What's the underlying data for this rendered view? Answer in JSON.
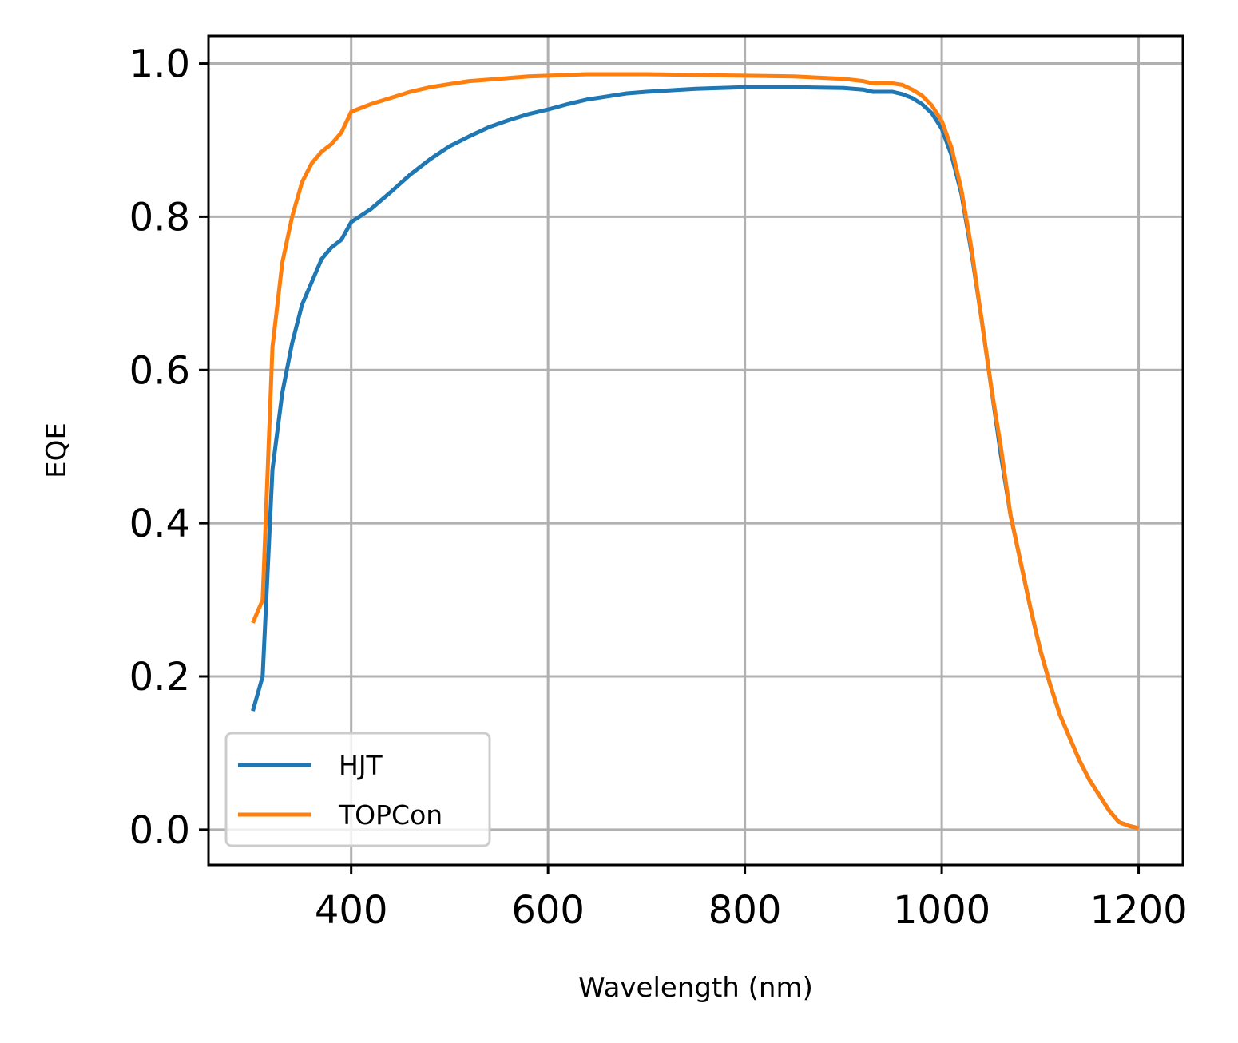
{
  "chart_data": {
    "type": "line",
    "title": "",
    "xlabel": "Wavelength (nm)",
    "ylabel": "EQE",
    "xlim": [
      255,
      1245
    ],
    "ylim": [
      -0.046,
      1.036
    ],
    "xticks": [
      400,
      600,
      800,
      1000,
      1200
    ],
    "xtick_labels": [
      "400",
      "600",
      "800",
      "1000",
      "1200"
    ],
    "yticks": [
      0.0,
      0.2,
      0.4,
      0.6,
      0.8,
      1.0
    ],
    "ytick_labels": [
      "0.0",
      "0.2",
      "0.4",
      "0.6",
      "0.8",
      "1.0"
    ],
    "grid": true,
    "legend": {
      "position": "lower-left"
    },
    "series": [
      {
        "name": "HJT",
        "color": "#1f77b4",
        "x": [
          300,
          310,
          320,
          330,
          340,
          350,
          360,
          370,
          380,
          390,
          400,
          420,
          440,
          460,
          480,
          500,
          520,
          540,
          560,
          580,
          600,
          620,
          640,
          660,
          680,
          700,
          750,
          800,
          850,
          900,
          920,
          930,
          940,
          950,
          960,
          970,
          980,
          990,
          1000,
          1010,
          1020,
          1030,
          1040,
          1050,
          1060,
          1070,
          1080,
          1090,
          1100,
          1110,
          1120,
          1130,
          1140,
          1150,
          1160,
          1170,
          1180,
          1190,
          1200
        ],
        "y": [
          0.155,
          0.2,
          0.47,
          0.57,
          0.635,
          0.685,
          0.715,
          0.745,
          0.76,
          0.77,
          0.793,
          0.81,
          0.832,
          0.855,
          0.875,
          0.892,
          0.905,
          0.917,
          0.926,
          0.934,
          0.94,
          0.947,
          0.953,
          0.957,
          0.961,
          0.963,
          0.967,
          0.969,
          0.969,
          0.968,
          0.966,
          0.963,
          0.963,
          0.963,
          0.96,
          0.955,
          0.947,
          0.935,
          0.915,
          0.88,
          0.83,
          0.755,
          0.67,
          0.58,
          0.49,
          0.41,
          0.35,
          0.29,
          0.235,
          0.19,
          0.15,
          0.12,
          0.09,
          0.065,
          0.045,
          0.025,
          0.01,
          0.005,
          0.002
        ]
      },
      {
        "name": "TOPCon",
        "color": "#ff7f0e",
        "x": [
          300,
          310,
          320,
          330,
          340,
          350,
          360,
          370,
          380,
          390,
          400,
          420,
          440,
          460,
          480,
          500,
          520,
          540,
          560,
          580,
          600,
          620,
          640,
          660,
          680,
          700,
          750,
          800,
          850,
          900,
          920,
          930,
          940,
          950,
          960,
          970,
          980,
          990,
          1000,
          1010,
          1020,
          1030,
          1040,
          1050,
          1060,
          1070,
          1080,
          1090,
          1100,
          1110,
          1120,
          1130,
          1140,
          1150,
          1160,
          1170,
          1180,
          1190,
          1200
        ],
        "y": [
          0.27,
          0.3,
          0.63,
          0.74,
          0.8,
          0.845,
          0.87,
          0.885,
          0.895,
          0.91,
          0.937,
          0.947,
          0.955,
          0.963,
          0.969,
          0.973,
          0.977,
          0.979,
          0.981,
          0.983,
          0.984,
          0.985,
          0.986,
          0.986,
          0.986,
          0.986,
          0.985,
          0.984,
          0.983,
          0.98,
          0.977,
          0.974,
          0.974,
          0.974,
          0.972,
          0.966,
          0.958,
          0.945,
          0.925,
          0.89,
          0.835,
          0.76,
          0.67,
          0.58,
          0.5,
          0.41,
          0.35,
          0.29,
          0.235,
          0.19,
          0.15,
          0.12,
          0.09,
          0.065,
          0.045,
          0.025,
          0.01,
          0.005,
          0.002
        ]
      }
    ]
  }
}
